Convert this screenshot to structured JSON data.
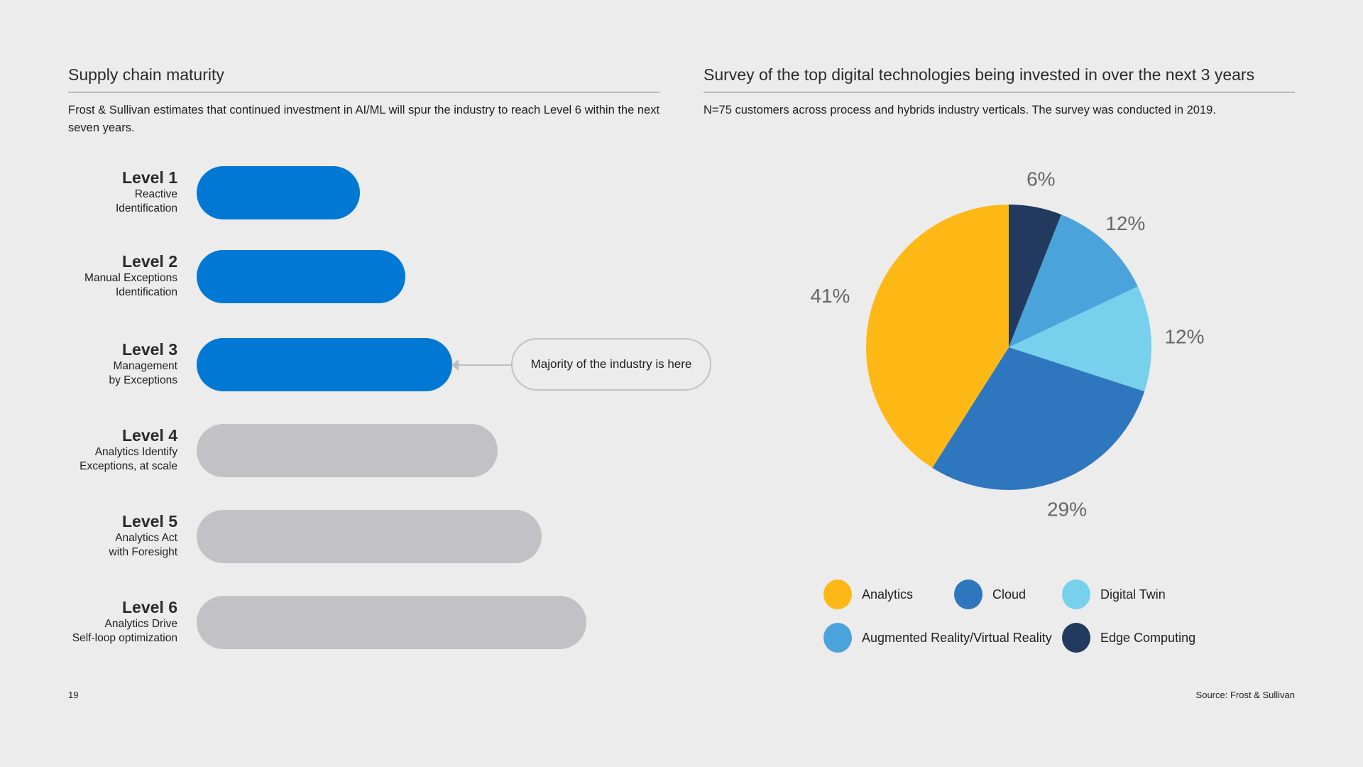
{
  "left": {
    "title": "Supply chain maturity",
    "description": "Frost & Sullivan estimates that continued investment in AI/ML will spur the industry to reach Level 6 within the next seven years.",
    "levels": [
      {
        "title": "Level 1",
        "line1": "Reactive",
        "line2": "Identification",
        "active": true
      },
      {
        "title": "Level 2",
        "line1": "Manual Exceptions",
        "line2": "Identification",
        "active": true
      },
      {
        "title": "Level 3",
        "line1": "Management",
        "line2": "by Exceptions",
        "active": true
      },
      {
        "title": "Level 4",
        "line1": "Analytics Identify",
        "line2": "Exceptions, at scale",
        "active": false
      },
      {
        "title": "Level 5",
        "line1": "Analytics Act",
        "line2": "with Foresight",
        "active": false
      },
      {
        "title": "Level 6",
        "line1": "Analytics Drive",
        "line2": "Self-loop optimization",
        "active": false
      }
    ],
    "callout": "Majority of the industry is here",
    "colors": {
      "active": "#0078d4",
      "inactive": "#c2c2c6"
    }
  },
  "right": {
    "title": "Survey of the top digital technologies being invested in over the next 3 years",
    "description": "N=75 customers across process and hybrids industry verticals. The survey was conducted in 2019."
  },
  "chart_data": {
    "type": "pie",
    "title": "Survey of the top digital technologies being invested in over the next 3 years",
    "start": "top, clockwise",
    "slices": [
      {
        "name": "Edge Computing",
        "value": 6,
        "label": "6%",
        "color": "#213a5e"
      },
      {
        "name": "Augmented Reality/Virtual Reality",
        "value": 12,
        "label": "12%",
        "color": "#4aa4db"
      },
      {
        "name": "Digital Twin",
        "value": 12,
        "label": "12%",
        "color": "#77d0ec"
      },
      {
        "name": "Cloud",
        "value": 29,
        "label": "29%",
        "color": "#2e76bd"
      },
      {
        "name": "Analytics",
        "value": 41,
        "label": "41%",
        "color": "#fdb816"
      }
    ],
    "legend": [
      {
        "name": "Analytics",
        "color": "#fdb816"
      },
      {
        "name": "Cloud",
        "color": "#2e76bd"
      },
      {
        "name": "Digital Twin",
        "color": "#77d0ec"
      },
      {
        "name": "Augmented Reality/Virtual Reality",
        "color": "#4aa4db"
      },
      {
        "name": "Edge Computing",
        "color": "#213a5e"
      }
    ],
    "legend_position": "bottom"
  },
  "footer": {
    "page_number": "19",
    "source": "Source: Frost & Sullivan"
  }
}
